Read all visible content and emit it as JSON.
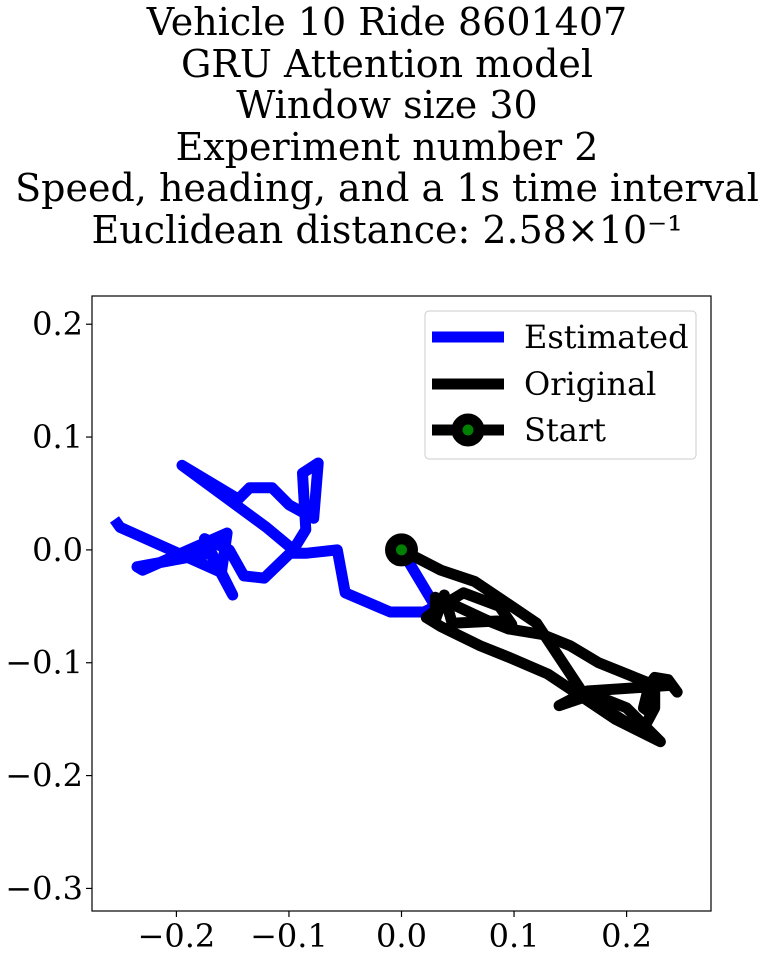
{
  "chart_data": {
    "type": "line",
    "title": [
      "Vehicle 10 Ride 8601407",
      "GRU Attention model",
      "Window size 30",
      "Experiment number 2",
      "Speed, heading, and a 1s time interval",
      "Euclidean distance: 2.58×10⁻¹"
    ],
    "xlim": [
      -0.275,
      0.275
    ],
    "ylim": [
      -0.32,
      0.225
    ],
    "xticks": [
      -0.2,
      -0.1,
      0.0,
      0.1,
      0.2
    ],
    "xtick_labels": [
      "−0.2",
      "−0.1",
      "0.0",
      "0.1",
      "0.2"
    ],
    "yticks": [
      0.2,
      0.1,
      0.0,
      -0.1,
      -0.2,
      -0.3
    ],
    "ytick_labels": [
      "0.2",
      "0.1",
      "0.0",
      "−0.1",
      "−0.2",
      "−0.3"
    ],
    "grid": false,
    "legend_position": "top-right",
    "series": [
      {
        "name": "Estimated",
        "color": "#0000ff",
        "points": [
          [
            0.0,
            0.0
          ],
          [
            0.03,
            -0.05
          ],
          [
            0.02,
            -0.055
          ],
          [
            -0.01,
            -0.055
          ],
          [
            -0.05,
            -0.038
          ],
          [
            -0.057,
            0.0
          ],
          [
            -0.085,
            -0.003
          ],
          [
            -0.098,
            -0.003
          ],
          [
            -0.085,
            0.018
          ],
          [
            -0.088,
            0.068
          ],
          [
            -0.074,
            0.077
          ],
          [
            -0.078,
            0.028
          ],
          [
            -0.1,
            0.04
          ],
          [
            -0.115,
            0.055
          ],
          [
            -0.135,
            0.055
          ],
          [
            -0.145,
            0.045
          ],
          [
            -0.195,
            0.075
          ],
          [
            -0.12,
            0.02
          ],
          [
            -0.096,
            0.0
          ],
          [
            -0.122,
            -0.025
          ],
          [
            -0.14,
            -0.023
          ],
          [
            -0.153,
            0.0
          ],
          [
            -0.175,
            0.01
          ],
          [
            -0.15,
            -0.04
          ],
          [
            -0.17,
            -0.003
          ],
          [
            -0.235,
            -0.015
          ],
          [
            -0.23,
            -0.018
          ],
          [
            -0.155,
            0.015
          ],
          [
            -0.16,
            -0.02
          ],
          [
            -0.25,
            0.02
          ],
          [
            -0.255,
            0.027
          ]
        ]
      },
      {
        "name": "Original",
        "color": "#000000",
        "points": [
          [
            0.0,
            0.0
          ],
          [
            0.035,
            -0.018
          ],
          [
            0.065,
            -0.028
          ],
          [
            0.095,
            -0.048
          ],
          [
            0.12,
            -0.065
          ],
          [
            0.14,
            -0.095
          ],
          [
            0.16,
            -0.125
          ],
          [
            0.18,
            -0.14
          ],
          [
            0.2,
            -0.153
          ],
          [
            0.23,
            -0.17
          ],
          [
            0.2,
            -0.14
          ],
          [
            0.17,
            -0.128
          ],
          [
            0.14,
            -0.138
          ],
          [
            0.165,
            -0.125
          ],
          [
            0.21,
            -0.122
          ],
          [
            0.24,
            -0.12
          ],
          [
            0.245,
            -0.126
          ],
          [
            0.237,
            -0.115
          ],
          [
            0.225,
            -0.113
          ],
          [
            0.22,
            -0.12
          ],
          [
            0.215,
            -0.14
          ],
          [
            0.222,
            -0.145
          ],
          [
            0.218,
            -0.153
          ],
          [
            0.225,
            -0.14
          ],
          [
            0.225,
            -0.12
          ],
          [
            0.2,
            -0.11
          ],
          [
            0.175,
            -0.1
          ],
          [
            0.15,
            -0.085
          ],
          [
            0.125,
            -0.075
          ],
          [
            0.095,
            -0.07
          ],
          [
            0.075,
            -0.062
          ],
          [
            0.045,
            -0.048
          ],
          [
            0.03,
            -0.042
          ],
          [
            0.03,
            -0.062
          ],
          [
            0.038,
            -0.04
          ],
          [
            0.045,
            -0.065
          ],
          [
            0.085,
            -0.063
          ],
          [
            0.098,
            -0.066
          ],
          [
            0.087,
            -0.05
          ],
          [
            0.055,
            -0.038
          ],
          [
            0.035,
            -0.05
          ],
          [
            0.022,
            -0.06
          ],
          [
            0.035,
            -0.068
          ],
          [
            0.07,
            -0.085
          ],
          [
            0.095,
            -0.095
          ],
          [
            0.13,
            -0.11
          ],
          [
            0.16,
            -0.13
          ],
          [
            0.19,
            -0.15
          ],
          [
            0.21,
            -0.16
          ],
          [
            0.23,
            -0.17
          ]
        ]
      }
    ],
    "start": {
      "name": "Start",
      "x": 0.0,
      "y": 0.0,
      "edge_color": "#000000",
      "face_color": "#008000"
    }
  }
}
